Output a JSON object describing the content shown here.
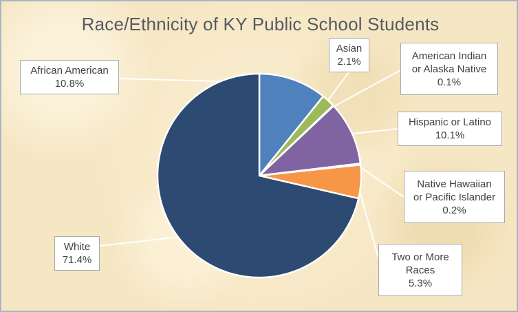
{
  "chart_data": {
    "type": "pie",
    "title": "Race/Ethnicity of KY Public School Students",
    "slices": [
      {
        "name": "African American",
        "value_label": "10.8%",
        "value": 10.8,
        "color": "#4f81bd"
      },
      {
        "name": "Asian",
        "value_label": "2.1%",
        "value": 2.1,
        "color": "#9bbb59"
      },
      {
        "name": "American Indian or Alaska Native",
        "value_label": "0.1%",
        "value": 0.1,
        "color": "#c0504d"
      },
      {
        "name": "Hispanic or Latino",
        "value_label": "10.1%",
        "value": 10.1,
        "color": "#8064a2"
      },
      {
        "name": "Native Hawaiian or Pacific Islander",
        "value_label": "0.2%",
        "value": 0.2,
        "color": "#4bacc6"
      },
      {
        "name": "Two or More Races",
        "value_label": "5.3%",
        "value": 5.3,
        "color": "#f79646"
      },
      {
        "name": "White",
        "value_label": "71.4%",
        "value": 71.4,
        "color": "#2c4a72"
      }
    ],
    "legend": "none",
    "label_style": "callout boxes with leader lines"
  }
}
